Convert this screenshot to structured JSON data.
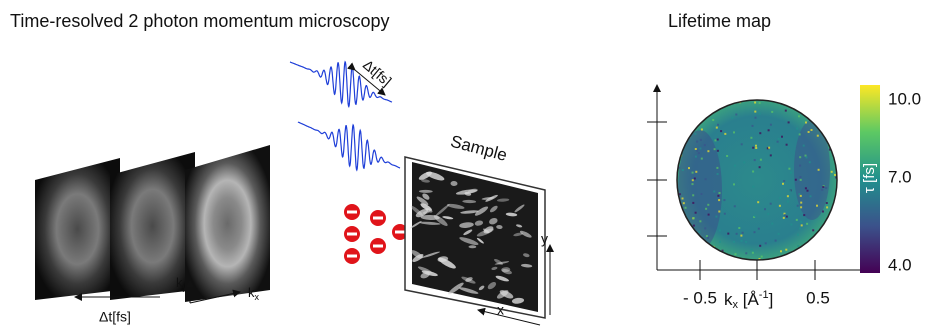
{
  "left_panel": {
    "title": "Time-resolved 2 photon momentum microscopy",
    "pulse_delay_label": "Δt[fs]",
    "sample_label": "Sample",
    "frame_delay_label": "Δt[fs]",
    "ky_label": {
      "base": "k",
      "sub": "y"
    },
    "kx_label": {
      "base": "k",
      "sub": "x"
    },
    "x_label": "x",
    "y_label": "y"
  },
  "right_panel": {
    "title": "Lifetime map",
    "x_tick_labels": [
      "- 0.5",
      "0.5"
    ],
    "x_axis_label": {
      "base": "k",
      "sub": "x",
      "unit": " [Å",
      "exp": "-1",
      "close": "]"
    },
    "colorbar_label": "τ [fs]",
    "colorbar_tick_labels": [
      "10.0",
      "7.0",
      "4.0"
    ]
  }
}
